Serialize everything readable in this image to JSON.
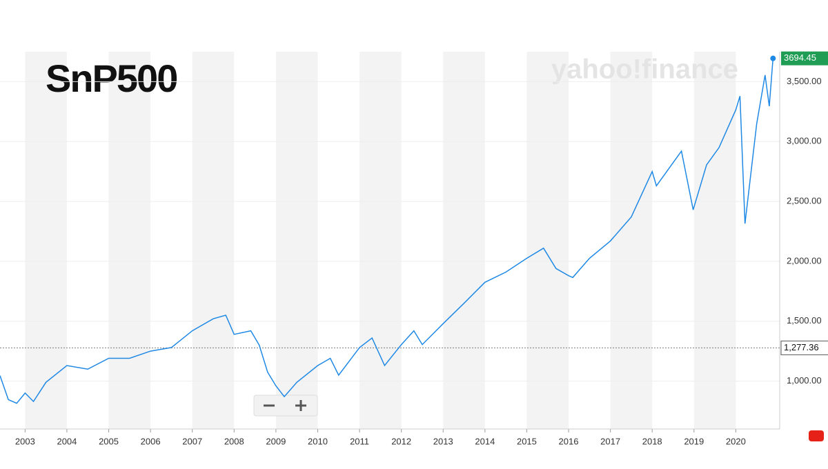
{
  "chart_data": {
    "type": "line",
    "title": "SnP500",
    "watermark": "yahoo!finance",
    "x": [
      2002.4,
      2002.6,
      2002.8,
      2003.0,
      2003.2,
      2003.5,
      2004.0,
      2004.5,
      2005.0,
      2005.5,
      2006.0,
      2006.5,
      2007.0,
      2007.5,
      2007.8,
      2008.0,
      2008.4,
      2008.6,
      2008.8,
      2009.0,
      2009.2,
      2009.5,
      2010.0,
      2010.3,
      2010.5,
      2011.0,
      2011.3,
      2011.6,
      2012.0,
      2012.3,
      2012.5,
      2013.0,
      2013.5,
      2014.0,
      2014.5,
      2015.0,
      2015.4,
      2015.7,
      2016.0,
      2016.1,
      2016.5,
      2017.0,
      2017.5,
      2018.0,
      2018.1,
      2018.7,
      2018.98,
      2019.3,
      2019.6,
      2020.0,
      2020.1,
      2020.22,
      2020.5,
      2020.7,
      2020.8,
      2020.89
    ],
    "series": [
      {
        "name": "S&P 500",
        "color": "#1e88e5",
        "values": [
          1046,
          845,
          815,
          900,
          830,
          990,
          1130,
          1100,
          1190,
          1190,
          1250,
          1280,
          1420,
          1520,
          1550,
          1390,
          1420,
          1300,
          1075,
          960,
          870,
          990,
          1130,
          1190,
          1050,
          1280,
          1360,
          1130,
          1305,
          1420,
          1305,
          1480,
          1650,
          1825,
          1910,
          2025,
          2110,
          1940,
          1880,
          1865,
          2025,
          2170,
          2370,
          2750,
          2630,
          2920,
          2430,
          2805,
          2950,
          3265,
          3380,
          2315,
          3150,
          3555,
          3295,
          3694.45
        ]
      }
    ],
    "xlim": [
      2002.4,
      2021.05
    ],
    "xticks": [
      2003,
      2004,
      2005,
      2006,
      2007,
      2008,
      2009,
      2010,
      2011,
      2012,
      2013,
      2014,
      2015,
      2016,
      2017,
      2018,
      2019,
      2020
    ],
    "ylim": [
      600,
      3750
    ],
    "yticks": [
      {
        "value": 1000,
        "label": "1,000.00"
      },
      {
        "value": 1500,
        "label": "1,500.00"
      },
      {
        "value": 2000,
        "label": "2,000.00"
      },
      {
        "value": 2500,
        "label": "2,500.00"
      },
      {
        "value": 3000,
        "label": "3,000.00"
      },
      {
        "value": 3500,
        "label": "3,500.00"
      }
    ],
    "reference_line": {
      "value": 1277.36,
      "label": "1,277.36"
    },
    "grid": true
  }
}
